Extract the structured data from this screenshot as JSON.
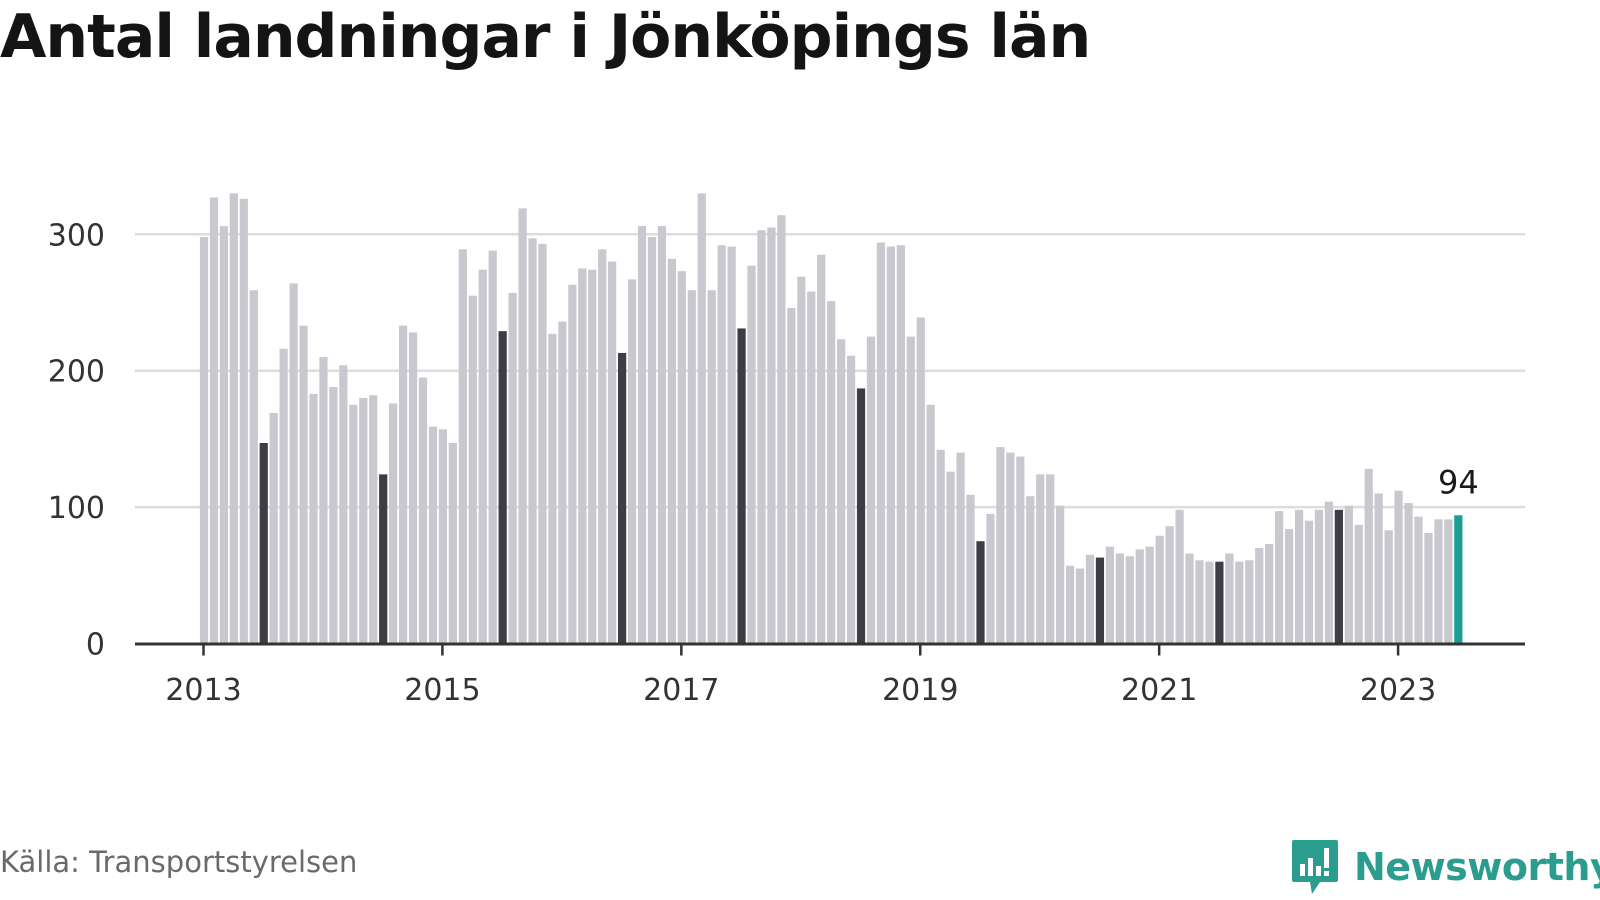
{
  "title": "Antal landningar i Jönköpings län",
  "source": "Källa: Transportstyrelsen",
  "brand": {
    "name": "Newsworthy",
    "icon": "newsworthy-logo-icon"
  },
  "colors": {
    "regular": "#c8c8ce",
    "highlight": "#3d3d46",
    "latest": "#1a9e90",
    "grid": "#dddddd",
    "axis": "#333333",
    "brand": "#2a9d8f"
  },
  "chart_data": {
    "type": "bar",
    "title": "Antal landningar i Jönköpings län",
    "xlabel": "",
    "ylabel": "",
    "ylim": [
      0,
      330
    ],
    "yticks": [
      0,
      100,
      200,
      300
    ],
    "xticks": [
      "2013",
      "2015",
      "2017",
      "2019",
      "2021",
      "2023"
    ],
    "grid": true,
    "start": "2013-01",
    "highlight_month": "July",
    "annotation": {
      "text": "94",
      "month": "2023-07"
    },
    "months": [
      "2013-01",
      "2013-02",
      "2013-03",
      "2013-04",
      "2013-05",
      "2013-06",
      "2013-07",
      "2013-08",
      "2013-09",
      "2013-10",
      "2013-11",
      "2013-12",
      "2014-01",
      "2014-02",
      "2014-03",
      "2014-04",
      "2014-05",
      "2014-06",
      "2014-07",
      "2014-08",
      "2014-09",
      "2014-10",
      "2014-11",
      "2014-12",
      "2015-01",
      "2015-02",
      "2015-03",
      "2015-04",
      "2015-05",
      "2015-06",
      "2015-07",
      "2015-08",
      "2015-09",
      "2015-10",
      "2015-11",
      "2015-12",
      "2016-01",
      "2016-02",
      "2016-03",
      "2016-04",
      "2016-05",
      "2016-06",
      "2016-07",
      "2016-08",
      "2016-09",
      "2016-10",
      "2016-11",
      "2016-12",
      "2017-01",
      "2017-02",
      "2017-03",
      "2017-04",
      "2017-05",
      "2017-06",
      "2017-07",
      "2017-08",
      "2017-09",
      "2017-10",
      "2017-11",
      "2017-12",
      "2018-01",
      "2018-02",
      "2018-03",
      "2018-04",
      "2018-05",
      "2018-06",
      "2018-07",
      "2018-08",
      "2018-09",
      "2018-10",
      "2018-11",
      "2018-12",
      "2019-01",
      "2019-02",
      "2019-03",
      "2019-04",
      "2019-05",
      "2019-06",
      "2019-07",
      "2019-08",
      "2019-09",
      "2019-10",
      "2019-11",
      "2019-12",
      "2020-01",
      "2020-02",
      "2020-03",
      "2020-04",
      "2020-05",
      "2020-06",
      "2020-07",
      "2020-08",
      "2020-09",
      "2020-10",
      "2020-11",
      "2020-12",
      "2021-01",
      "2021-02",
      "2021-03",
      "2021-04",
      "2021-05",
      "2021-06",
      "2021-07",
      "2021-08",
      "2021-09",
      "2021-10",
      "2021-11",
      "2021-12",
      "2022-01",
      "2022-02",
      "2022-03",
      "2022-04",
      "2022-05",
      "2022-06",
      "2022-07",
      "2022-08",
      "2022-09",
      "2022-10",
      "2022-11",
      "2022-12",
      "2023-01",
      "2023-02",
      "2023-03",
      "2023-04",
      "2023-05",
      "2023-06",
      "2023-07"
    ],
    "values": [
      298,
      327,
      306,
      330,
      326,
      259,
      147,
      169,
      216,
      264,
      233,
      183,
      210,
      188,
      204,
      175,
      180,
      182,
      124,
      176,
      233,
      228,
      195,
      159,
      157,
      147,
      289,
      255,
      274,
      288,
      229,
      257,
      319,
      297,
      293,
      227,
      236,
      263,
      275,
      274,
      289,
      280,
      213,
      267,
      306,
      298,
      306,
      282,
      273,
      259,
      330,
      259,
      292,
      291,
      231,
      277,
      303,
      305,
      314,
      246,
      269,
      258,
      285,
      251,
      223,
      211,
      187,
      225,
      294,
      291,
      292,
      225,
      239,
      175,
      142,
      126,
      140,
      109,
      75,
      95,
      144,
      140,
      137,
      108,
      124,
      124,
      101,
      57,
      55,
      65,
      63,
      71,
      66,
      64,
      69,
      71,
      79,
      86,
      98,
      66,
      61,
      60,
      60,
      66,
      60,
      61,
      70,
      73,
      97,
      84,
      98,
      90,
      98,
      104,
      98,
      101,
      87,
      128,
      110,
      83,
      112,
      103,
      93,
      81,
      91,
      91,
      94
    ]
  }
}
